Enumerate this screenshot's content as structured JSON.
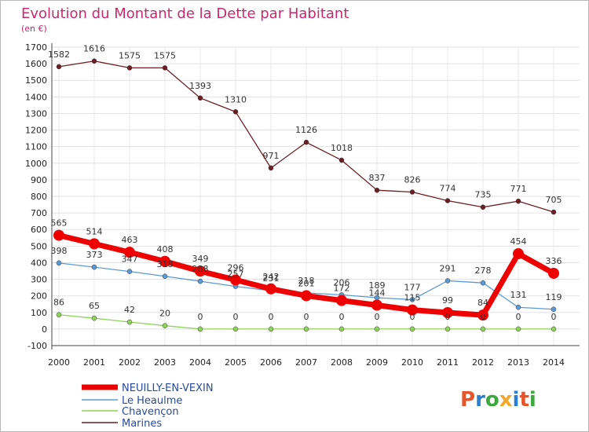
{
  "chart_data": {
    "type": "line",
    "title": "Evolution du Montant de la Dette par Habitant",
    "subtitle": "(en €)",
    "x": [
      "2000",
      "2001",
      "2002",
      "2003",
      "2004",
      "2005",
      "2006",
      "2007",
      "2008",
      "2009",
      "2010",
      "2011",
      "2012",
      "2013",
      "2014"
    ],
    "ylim": [
      -100,
      1700
    ],
    "yticks": [
      -100,
      0,
      100,
      200,
      300,
      400,
      500,
      600,
      700,
      800,
      900,
      1000,
      1100,
      1200,
      1300,
      1400,
      1500,
      1600,
      1700
    ],
    "grid": true,
    "legend_position": "bottom-left",
    "series": [
      {
        "name": "NEUILLY-EN-VEXIN",
        "color": "#ee0000",
        "values": [
          565,
          514,
          463,
          408,
          349,
          296,
          242,
          201,
          172,
          144,
          115,
          99,
          84,
          454,
          336
        ],
        "labels": [
          "565",
          "514",
          "463",
          "408",
          "349",
          "296",
          "242",
          "201",
          "172",
          "144",
          "115",
          "99",
          "84",
          "454",
          "336"
        ]
      },
      {
        "name": "Le Heaulme",
        "color": "#5b9bd5",
        "values": [
          398,
          373,
          347,
          318,
          288,
          257,
          231,
          218,
          206,
          189,
          177,
          291,
          278,
          131,
          119
        ],
        "labels": [
          "398",
          "373",
          "347",
          "318",
          "288",
          "257",
          "231",
          "218",
          "206",
          "189",
          "177",
          "291",
          "278",
          "131",
          "119"
        ]
      },
      {
        "name": "Chavençon",
        "color": "#8fd35a",
        "values": [
          86,
          65,
          42,
          20,
          0,
          0,
          0,
          0,
          0,
          0,
          0,
          0,
          0,
          0,
          0
        ],
        "labels": [
          "86",
          "65",
          "42",
          "20",
          "0",
          "0",
          "0",
          "0",
          "0",
          "0",
          "0",
          "0",
          "0",
          "0",
          "0"
        ]
      },
      {
        "name": "Marines",
        "color": "#6b1e24",
        "values": [
          1582,
          1616,
          1575,
          1575,
          1393,
          1310,
          971,
          1126,
          1018,
          837,
          826,
          774,
          735,
          771,
          705
        ],
        "labels": [
          "1582",
          "1616",
          "1575",
          "1575",
          "1393",
          "1310",
          "971",
          "1126",
          "1018",
          "837",
          "826",
          "774",
          "735",
          "771",
          "705"
        ]
      }
    ]
  },
  "logo": {
    "text": "Proxiti",
    "colors": [
      "#e8542a",
      "#2a7fd4",
      "#3ea83e",
      "#f2a72a",
      "#2a7fd4",
      "#e8542a",
      "#3ea83e"
    ]
  }
}
